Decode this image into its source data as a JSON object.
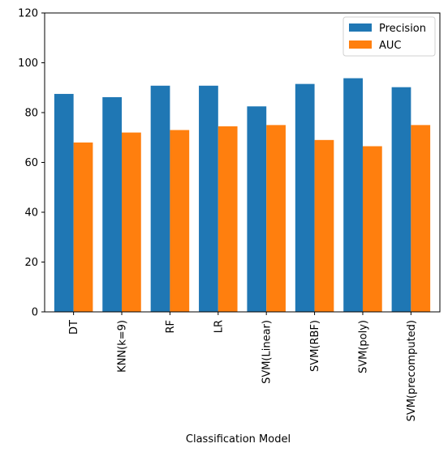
{
  "chart_data": {
    "type": "bar",
    "title": "",
    "xlabel": "Classification Model",
    "ylabel": "",
    "categories": [
      "DT",
      "KNN(k=9)",
      "RF",
      "LR",
      "SVM(Linear)",
      "SVM(RBF)",
      "SVM(poly)",
      "SVM(precomputed)"
    ],
    "series": [
      {
        "name": "Precision",
        "color": "#1f77b4",
        "values": [
          87.5,
          86.2,
          90.8,
          90.8,
          82.5,
          91.5,
          93.8,
          90.2
        ]
      },
      {
        "name": "AUC",
        "color": "#ff7f0e",
        "values": [
          68.0,
          72.0,
          73.0,
          74.5,
          75.0,
          69.0,
          66.5,
          75.0
        ]
      }
    ],
    "ylim": [
      0,
      120
    ],
    "yticks": [
      0,
      20,
      40,
      60,
      80,
      100,
      120
    ],
    "grid": false,
    "legend_position": "top-right"
  }
}
